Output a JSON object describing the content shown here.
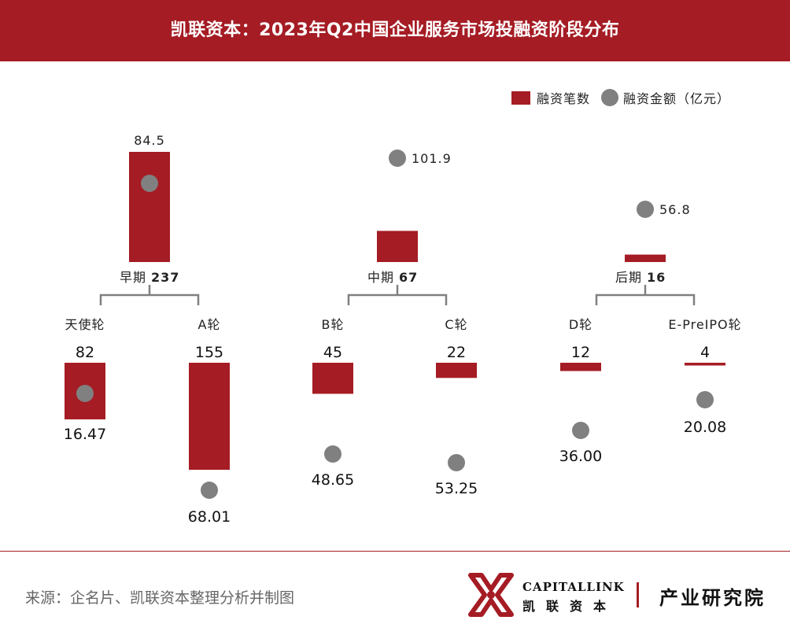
{
  "title": "凯联资本：2023年Q2中国企业服务市场投融资阶段分布",
  "legend": {
    "count_label": "融资笔数",
    "amount_label": "融资金额（亿元）"
  },
  "colors": {
    "bar": "#a51c24",
    "dot": "#808080",
    "bracket": "#808080",
    "header": "#a51c24"
  },
  "chart_data": {
    "type": "bar",
    "stages": [
      {
        "name": "早期",
        "count": 237,
        "amount": 84.5
      },
      {
        "name": "中期",
        "count": 67,
        "amount": 101.9
      },
      {
        "name": "后期",
        "count": 16,
        "amount": 56.8
      }
    ],
    "rounds": [
      {
        "name": "天使轮",
        "stage": "早期",
        "count": 82,
        "amount": 16.47
      },
      {
        "name": "A轮",
        "stage": "早期",
        "count": 155,
        "amount": 68.01
      },
      {
        "name": "B轮",
        "stage": "中期",
        "count": 45,
        "amount": 48.65
      },
      {
        "name": "C轮",
        "stage": "中期",
        "count": 22,
        "amount": 53.25
      },
      {
        "name": "D轮",
        "stage": "后期",
        "count": 12,
        "amount": 36.0
      },
      {
        "name": "E-PreIPO轮",
        "stage": "后期",
        "count": 4,
        "amount": 20.08
      }
    ]
  },
  "footer": {
    "source": "来源：企名片、凯联资本整理分析并制图",
    "brand_en": "CAPITALLINK",
    "brand_cn": "凯联资本",
    "brand_inst": "产业研究院"
  }
}
